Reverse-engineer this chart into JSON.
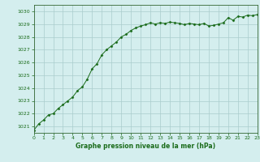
{
  "title": "Graphe pression niveau de la mer (hPa)",
  "x_values": [
    0,
    0.5,
    1,
    1.5,
    2,
    2.5,
    3,
    3.5,
    4,
    4.5,
    5,
    5.5,
    6,
    6.5,
    7,
    7.5,
    8,
    8.5,
    9,
    9.5,
    10,
    10.5,
    11,
    11.5,
    12,
    12.5,
    13,
    13.5,
    14,
    14.5,
    15,
    15.5,
    16,
    16.5,
    17,
    17.5,
    18,
    18.5,
    19,
    19.5,
    20,
    20.5,
    21,
    21.5,
    22,
    22.5,
    23
  ],
  "y_values": [
    1020.7,
    1021.2,
    1021.5,
    1021.9,
    1022.0,
    1022.4,
    1022.7,
    1023.0,
    1023.3,
    1023.8,
    1024.1,
    1024.7,
    1025.5,
    1025.9,
    1026.6,
    1027.0,
    1027.3,
    1027.6,
    1028.0,
    1028.2,
    1028.5,
    1028.7,
    1028.85,
    1028.95,
    1029.1,
    1029.0,
    1029.1,
    1029.05,
    1029.15,
    1029.1,
    1029.05,
    1028.95,
    1029.05,
    1029.0,
    1028.95,
    1029.05,
    1028.85,
    1028.9,
    1029.0,
    1029.1,
    1029.5,
    1029.3,
    1029.6,
    1029.55,
    1029.7,
    1029.65,
    1029.75
  ],
  "xlim": [
    0,
    23
  ],
  "ylim": [
    1020.5,
    1030.5
  ],
  "yticks": [
    1021,
    1022,
    1023,
    1024,
    1025,
    1026,
    1027,
    1028,
    1029,
    1030
  ],
  "xticks": [
    0,
    1,
    2,
    3,
    4,
    5,
    6,
    7,
    8,
    9,
    10,
    11,
    12,
    13,
    14,
    15,
    16,
    17,
    18,
    19,
    20,
    21,
    22,
    23
  ],
  "line_color": "#1a6b1a",
  "marker_color": "#1a6b1a",
  "bg_color": "#d4eeee",
  "grid_color": "#aacccc",
  "title_color": "#1a6b1a",
  "axis_color": "#336633",
  "tick_color": "#1a6b1a",
  "fig_width": 3.2,
  "fig_height": 2.0,
  "dpi": 100
}
